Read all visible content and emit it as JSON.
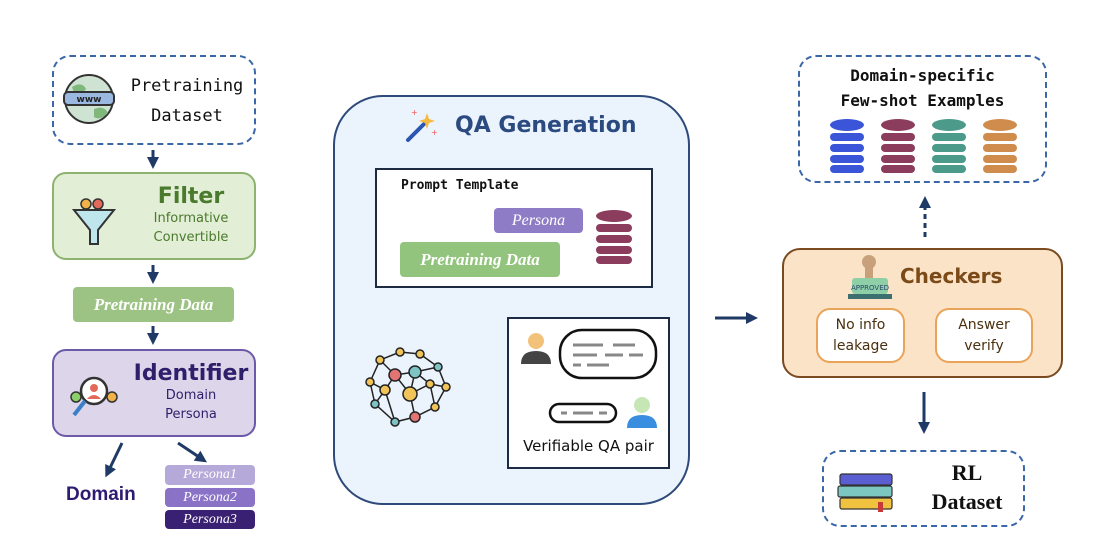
{
  "left": {
    "source": {
      "line1": "Pretraining",
      "line2": "Dataset",
      "icon": "globe-www-icon"
    },
    "filter": {
      "title": "Filter",
      "items": [
        "Informative",
        "Convertible"
      ],
      "icon": "funnel-icon",
      "color": "#4a7a2c"
    },
    "pretraining_data": "Pretraining Data",
    "identifier": {
      "title": "Identifier",
      "items": [
        "Domain",
        "Persona"
      ],
      "icon": "search-people-icon",
      "color": "#2e1f6b"
    },
    "domain": "Domain",
    "personas": [
      "Persona1",
      "Persona2",
      "Persona3"
    ]
  },
  "center": {
    "title": "QA Generation",
    "prompt_template": {
      "title": "Prompt Template",
      "persona": "Persona",
      "pretraining_data": "Pretraining Data"
    },
    "qa_pair_label": "Verifiable QA pair"
  },
  "right": {
    "fewshot": {
      "line1": "Domain-specific",
      "line2": "Few-shot Examples",
      "db_colors": [
        "#3b55d8",
        "#8c3c5c",
        "#4b9a8a",
        "#d08c4c"
      ]
    },
    "checkers": {
      "title": "Checkers",
      "stamp_text": "APPROVED",
      "steps": [
        {
          "line1": "No info",
          "line2": "leakage"
        },
        {
          "line1": "Answer",
          "line2": "verify"
        }
      ]
    },
    "rl_dataset": {
      "line1": "RL",
      "line2": "Dataset"
    }
  }
}
